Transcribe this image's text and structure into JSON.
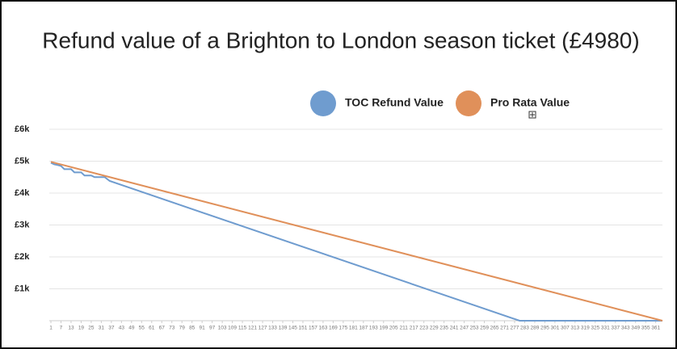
{
  "chart_data": {
    "type": "line",
    "title": "Refund value of a Brighton to London season ticket (£4980)",
    "legend": "top",
    "grid": true,
    "series": [
      {
        "name": "TOC Refund Value",
        "color": "#6f9ccf",
        "x": [
          1,
          3,
          5,
          7,
          9,
          13,
          15,
          19,
          21,
          25,
          27,
          33,
          36,
          280,
          365
        ],
        "values": [
          4950,
          4900,
          4880,
          4850,
          4750,
          4750,
          4650,
          4650,
          4550,
          4550,
          4500,
          4500,
          4380,
          0,
          0
        ]
      },
      {
        "name": "Pro Rata Value",
        "color": "#e0905a",
        "x": [
          1,
          365
        ],
        "values": [
          4980,
          0
        ]
      }
    ],
    "xlim": [
      1,
      365
    ],
    "xticks": [
      1,
      7,
      13,
      19,
      25,
      31,
      37,
      43,
      49,
      55,
      61,
      67,
      73,
      79,
      85,
      91,
      97,
      103,
      109,
      115,
      121,
      127,
      133,
      139,
      145,
      151,
      157,
      163,
      169,
      175,
      181,
      187,
      193,
      199,
      205,
      211,
      217,
      223,
      229,
      235,
      241,
      247,
      253,
      259,
      265,
      271,
      277,
      283,
      289,
      295,
      301,
      307,
      313,
      319,
      325,
      331,
      337,
      343,
      349,
      355,
      361
    ],
    "ylim": [
      0,
      6000
    ],
    "yticks": [
      {
        "value": 1000,
        "label": "£1k"
      },
      {
        "value": 2000,
        "label": "£2k"
      },
      {
        "value": 3000,
        "label": "£3k"
      },
      {
        "value": 4000,
        "label": "£4k"
      },
      {
        "value": 5000,
        "label": "£5k"
      },
      {
        "value": 6000,
        "label": "£6k"
      }
    ]
  }
}
